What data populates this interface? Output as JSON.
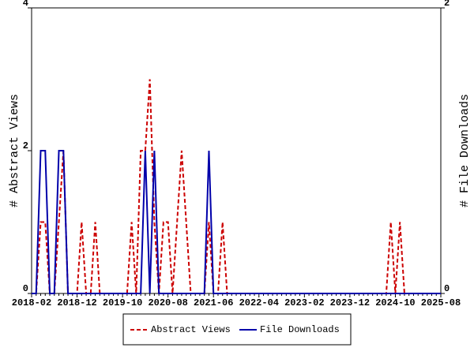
{
  "chart_data": {
    "type": "line",
    "categories": [
      "2018-02",
      null,
      null,
      null,
      null,
      null,
      null,
      null,
      null,
      null,
      "2018-12",
      null,
      null,
      null,
      null,
      null,
      null,
      null,
      null,
      null,
      "2019-10",
      null,
      null,
      null,
      null,
      null,
      null,
      null,
      null,
      null,
      "2020-08",
      null,
      null,
      null,
      null,
      null,
      null,
      null,
      null,
      null,
      "2021-06",
      null,
      null,
      null,
      null,
      null,
      null,
      null,
      null,
      null,
      "2022-04",
      null,
      null,
      null,
      null,
      null,
      null,
      null,
      null,
      null,
      "2023-02",
      null,
      null,
      null,
      null,
      null,
      null,
      null,
      null,
      null,
      "2023-12",
      null,
      null,
      null,
      null,
      null,
      null,
      null,
      null,
      null,
      "2024-10",
      null,
      null,
      null,
      null,
      null,
      null,
      null,
      null,
      null,
      "2025-08"
    ],
    "y_label": "# Abstract Views",
    "y2_label": "# File Downloads",
    "ylim": [
      0,
      4
    ],
    "yticks": [
      0,
      2,
      4
    ],
    "y2lim": [
      0,
      2
    ],
    "y2ticks": [
      0,
      2
    ],
    "legend": "bottom",
    "series": [
      {
        "name": "Abstract Views",
        "color": "#cc0000",
        "linestyle": "dashed",
        "values": [
          0,
          0,
          1,
          1,
          0,
          0,
          1,
          2,
          0,
          0,
          0,
          1,
          0,
          0,
          1,
          0,
          0,
          0,
          0,
          0,
          0,
          0,
          1,
          0,
          2,
          2,
          3,
          1,
          0,
          1,
          1,
          0,
          1,
          2,
          1,
          0,
          0,
          0,
          0,
          1,
          0,
          0,
          1,
          0,
          0,
          0,
          0,
          0,
          0,
          0,
          0,
          0,
          0,
          0,
          0,
          0,
          0,
          0,
          0,
          0,
          0,
          0,
          0,
          0,
          0,
          0,
          0,
          0,
          0,
          0,
          0,
          0,
          0,
          0,
          0,
          0,
          0,
          0,
          0,
          1,
          0,
          1,
          0,
          0,
          0,
          0,
          0,
          0,
          0,
          0,
          0
        ]
      },
      {
        "name": "File Downloads",
        "color": "#0000aa",
        "linestyle": "solid",
        "axis": "y2",
        "values": [
          0,
          0,
          1,
          1,
          0,
          0,
          1,
          1,
          0,
          0,
          0,
          0,
          0,
          0,
          0,
          0,
          0,
          0,
          0,
          0,
          0,
          0,
          0,
          0,
          0,
          1,
          0,
          1,
          0,
          0,
          0,
          0,
          0,
          0,
          0,
          0,
          0,
          0,
          0,
          1,
          0,
          0,
          0,
          0,
          0,
          0,
          0,
          0,
          0,
          0,
          0,
          0,
          0,
          0,
          0,
          0,
          0,
          0,
          0,
          0,
          0,
          0,
          0,
          0,
          0,
          0,
          0,
          0,
          0,
          0,
          0,
          0,
          0,
          0,
          0,
          0,
          0,
          0,
          0,
          0,
          0,
          0,
          0,
          0,
          0,
          0,
          0,
          0,
          0,
          0,
          0
        ]
      }
    ]
  }
}
